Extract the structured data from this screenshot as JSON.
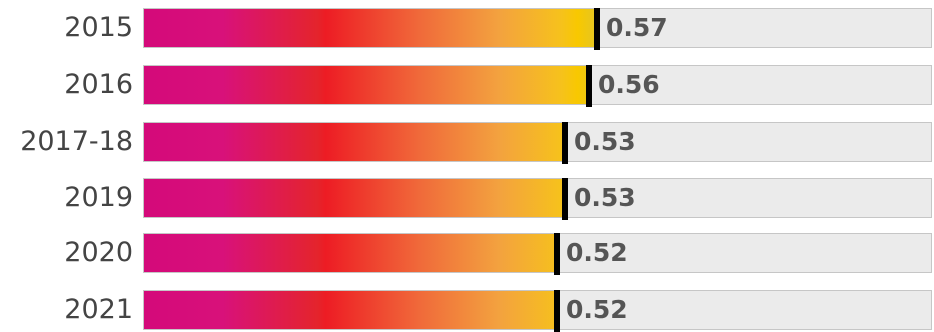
{
  "chart_data": {
    "type": "bar",
    "orientation": "horizontal",
    "categories": [
      "2015",
      "2016",
      "2017-18",
      "2019",
      "2020",
      "2021"
    ],
    "values": [
      0.57,
      0.56,
      0.53,
      0.53,
      0.52,
      0.52
    ],
    "value_labels": [
      "0.57",
      "0.56",
      "0.53",
      "0.53",
      "0.52",
      "0.52"
    ],
    "xlim": [
      0,
      1
    ],
    "grid": false,
    "legend": "none"
  },
  "colors": {
    "marker": "#000000",
    "track": "#ebebeb",
    "gradient_start": "#d4097a",
    "gradient_mid": "#ed1c24",
    "gradient_end": "#f8c800"
  }
}
